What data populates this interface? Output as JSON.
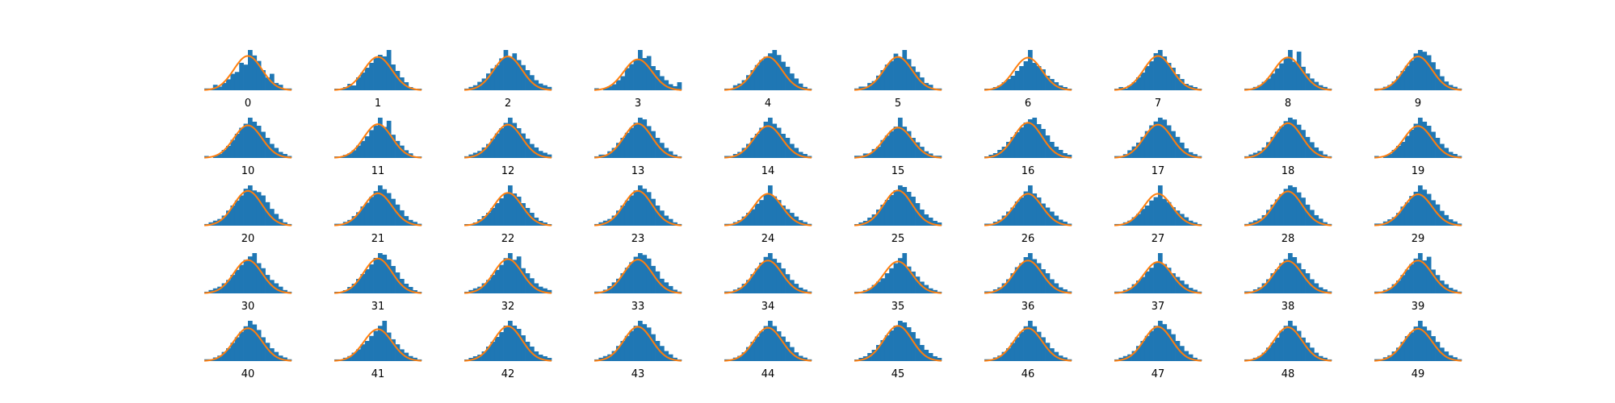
{
  "chart_data": {
    "type": "bar",
    "description_kind": "grid-of-histograms-with-normal-fit",
    "grid": {
      "rows": 5,
      "cols": 10
    },
    "colors": {
      "bars": "#1f77b4",
      "fit_curve": "#ff7f0e",
      "background": "#ffffff"
    },
    "axes_visible": false,
    "grid_lines": false,
    "panels": [
      {
        "label": "0",
        "counts": [
          1,
          1,
          3,
          2,
          4,
          6,
          9,
          10,
          15,
          14,
          22,
          19,
          16,
          11,
          7,
          9,
          4,
          3,
          1,
          1
        ],
        "peak": 0.62
      },
      {
        "label": "1",
        "counts": [
          1,
          1,
          2,
          4,
          3,
          8,
          11,
          14,
          17,
          20,
          22,
          21,
          25,
          16,
          12,
          8,
          5,
          2,
          1,
          1
        ],
        "peak": 0.58
      },
      {
        "label": "2",
        "counts": [
          1,
          2,
          3,
          5,
          7,
          10,
          13,
          15,
          19,
          24,
          20,
          22,
          18,
          15,
          12,
          9,
          6,
          4,
          3,
          2
        ],
        "peak": 0.6
      },
      {
        "label": "3",
        "counts": [
          1,
          0,
          1,
          2,
          3,
          5,
          7,
          11,
          13,
          15,
          20,
          16,
          17,
          12,
          10,
          7,
          5,
          3,
          2,
          4
        ],
        "peak": 0.48
      },
      {
        "label": "4",
        "counts": [
          1,
          1,
          3,
          4,
          6,
          9,
          12,
          15,
          18,
          20,
          22,
          24,
          21,
          17,
          14,
          10,
          7,
          4,
          2,
          1
        ],
        "peak": 0.58
      },
      {
        "label": "5",
        "counts": [
          1,
          2,
          2,
          4,
          5,
          8,
          11,
          14,
          16,
          20,
          18,
          22,
          17,
          13,
          10,
          7,
          4,
          3,
          1,
          1
        ],
        "peak": 0.58
      },
      {
        "label": "6",
        "counts": [
          1,
          1,
          2,
          3,
          5,
          7,
          9,
          12,
          15,
          18,
          25,
          17,
          15,
          13,
          9,
          7,
          5,
          3,
          2,
          1
        ],
        "peak": 0.55
      },
      {
        "label": "7",
        "counts": [
          1,
          2,
          1,
          3,
          5,
          8,
          11,
          15,
          18,
          23,
          25,
          21,
          17,
          14,
          10,
          7,
          4,
          3,
          2,
          1
        ],
        "peak": 0.62
      },
      {
        "label": "8",
        "counts": [
          1,
          1,
          2,
          3,
          5,
          7,
          10,
          13,
          16,
          19,
          24,
          17,
          23,
          14,
          10,
          7,
          5,
          3,
          2,
          1
        ],
        "peak": 0.56
      },
      {
        "label": "9",
        "counts": [
          1,
          1,
          2,
          3,
          5,
          8,
          11,
          14,
          17,
          21,
          23,
          22,
          20,
          16,
          12,
          8,
          5,
          3,
          2,
          1
        ],
        "peak": 0.6
      },
      {
        "label": "10",
        "counts": [
          1,
          0,
          1,
          2,
          4,
          6,
          9,
          12,
          15,
          17,
          20,
          18,
          16,
          13,
          10,
          7,
          5,
          3,
          2,
          1
        ],
        "peak": 0.55
      },
      {
        "label": "11",
        "counts": [
          1,
          1,
          2,
          3,
          5,
          8,
          11,
          14,
          18,
          21,
          26,
          20,
          24,
          15,
          11,
          8,
          5,
          3,
          1,
          1
        ],
        "peak": 0.6
      },
      {
        "label": "12",
        "counts": [
          1,
          2,
          3,
          4,
          6,
          8,
          11,
          14,
          17,
          20,
          23,
          20,
          17,
          14,
          11,
          8,
          6,
          4,
          3,
          2
        ],
        "peak": 0.58
      },
      {
        "label": "13",
        "counts": [
          1,
          2,
          2,
          4,
          6,
          9,
          12,
          15,
          18,
          21,
          24,
          23,
          19,
          16,
          12,
          9,
          6,
          4,
          2,
          1
        ],
        "peak": 0.62
      },
      {
        "label": "14",
        "counts": [
          1,
          1,
          2,
          3,
          5,
          7,
          10,
          12,
          15,
          18,
          20,
          17,
          15,
          12,
          10,
          7,
          5,
          3,
          2,
          1
        ],
        "peak": 0.52
      },
      {
        "label": "15",
        "counts": [
          1,
          1,
          2,
          2,
          4,
          5,
          8,
          10,
          12,
          14,
          18,
          14,
          12,
          9,
          7,
          5,
          3,
          2,
          1,
          1
        ],
        "peak": 0.46
      },
      {
        "label": "16",
        "counts": [
          1,
          2,
          3,
          5,
          7,
          10,
          13,
          16,
          19,
          22,
          24,
          25,
          21,
          18,
          14,
          10,
          7,
          5,
          3,
          2
        ],
        "peak": 0.66
      },
      {
        "label": "17",
        "counts": [
          1,
          1,
          2,
          4,
          6,
          8,
          11,
          14,
          17,
          19,
          21,
          20,
          17,
          14,
          11,
          8,
          5,
          3,
          2,
          1
        ],
        "peak": 0.58
      },
      {
        "label": "18",
        "counts": [
          1,
          2,
          3,
          4,
          6,
          9,
          12,
          15,
          18,
          21,
          23,
          22,
          19,
          16,
          12,
          9,
          6,
          4,
          2,
          1
        ],
        "peak": 0.64
      },
      {
        "label": "19",
        "counts": [
          1,
          0,
          1,
          2,
          4,
          6,
          8,
          11,
          14,
          17,
          20,
          18,
          16,
          13,
          10,
          7,
          5,
          3,
          2,
          1
        ],
        "peak": 0.52
      },
      {
        "label": "20",
        "counts": [
          1,
          2,
          3,
          4,
          6,
          9,
          12,
          15,
          18,
          22,
          24,
          21,
          20,
          18,
          14,
          10,
          7,
          4,
          2,
          1
        ],
        "peak": 0.64
      },
      {
        "label": "21",
        "counts": [
          1,
          1,
          2,
          3,
          5,
          7,
          10,
          12,
          15,
          18,
          21,
          19,
          17,
          14,
          11,
          8,
          5,
          3,
          2,
          1
        ],
        "peak": 0.54
      },
      {
        "label": "22",
        "counts": [
          1,
          1,
          2,
          4,
          6,
          8,
          11,
          14,
          17,
          20,
          25,
          20,
          18,
          14,
          11,
          8,
          5,
          3,
          2,
          1
        ],
        "peak": 0.56
      },
      {
        "label": "23",
        "counts": [
          1,
          2,
          3,
          4,
          6,
          9,
          12,
          15,
          18,
          21,
          24,
          22,
          20,
          16,
          12,
          9,
          6,
          4,
          2,
          1
        ],
        "peak": 0.64
      },
      {
        "label": "24",
        "counts": [
          1,
          1,
          2,
          3,
          5,
          7,
          9,
          12,
          14,
          17,
          22,
          16,
          14,
          11,
          9,
          7,
          5,
          3,
          2,
          1
        ],
        "peak": 0.52
      },
      {
        "label": "25",
        "counts": [
          1,
          2,
          3,
          5,
          7,
          10,
          13,
          16,
          19,
          22,
          25,
          24,
          21,
          18,
          14,
          10,
          7,
          5,
          3,
          2
        ],
        "peak": 0.66
      },
      {
        "label": "26",
        "counts": [
          1,
          1,
          2,
          3,
          5,
          7,
          9,
          12,
          14,
          17,
          20,
          16,
          14,
          11,
          9,
          7,
          5,
          3,
          2,
          1
        ],
        "peak": 0.52
      },
      {
        "label": "27",
        "counts": [
          1,
          1,
          2,
          3,
          5,
          7,
          10,
          12,
          15,
          17,
          24,
          16,
          14,
          11,
          9,
          7,
          5,
          3,
          2,
          1
        ],
        "peak": 0.52
      },
      {
        "label": "28",
        "counts": [
          1,
          2,
          3,
          4,
          6,
          9,
          12,
          15,
          18,
          21,
          23,
          22,
          19,
          16,
          12,
          9,
          6,
          4,
          2,
          1
        ],
        "peak": 0.62
      },
      {
        "label": "29",
        "counts": [
          1,
          1,
          2,
          3,
          4,
          6,
          9,
          11,
          14,
          16,
          19,
          17,
          15,
          12,
          10,
          7,
          5,
          3,
          2,
          1
        ],
        "peak": 0.5
      },
      {
        "label": "30",
        "counts": [
          1,
          2,
          3,
          4,
          6,
          8,
          11,
          14,
          17,
          20,
          22,
          24,
          18,
          15,
          11,
          8,
          6,
          4,
          2,
          1
        ],
        "peak": 0.58
      },
      {
        "label": "31",
        "counts": [
          1,
          1,
          2,
          4,
          6,
          9,
          12,
          15,
          18,
          22,
          25,
          24,
          21,
          17,
          13,
          9,
          6,
          4,
          2,
          1
        ],
        "peak": 0.64
      },
      {
        "label": "32",
        "counts": [
          1,
          2,
          3,
          4,
          6,
          8,
          11,
          14,
          17,
          21,
          24,
          20,
          22,
          15,
          12,
          9,
          6,
          4,
          3,
          2
        ],
        "peak": 0.62
      },
      {
        "label": "33",
        "counts": [
          1,
          1,
          2,
          4,
          6,
          8,
          11,
          14,
          17,
          20,
          22,
          21,
          19,
          15,
          12,
          8,
          6,
          4,
          2,
          1
        ],
        "peak": 0.6
      },
      {
        "label": "34",
        "counts": [
          1,
          1,
          2,
          3,
          5,
          7,
          10,
          13,
          16,
          19,
          21,
          18,
          16,
          13,
          10,
          7,
          5,
          3,
          2,
          1
        ],
        "peak": 0.56
      },
      {
        "label": "35",
        "counts": [
          1,
          1,
          2,
          3,
          5,
          7,
          9,
          12,
          15,
          18,
          21,
          24,
          16,
          13,
          10,
          7,
          5,
          3,
          2,
          1
        ],
        "peak": 0.52
      },
      {
        "label": "36",
        "counts": [
          1,
          1,
          2,
          3,
          5,
          7,
          10,
          13,
          15,
          18,
          20,
          17,
          15,
          12,
          10,
          7,
          5,
          3,
          2,
          1
        ],
        "peak": 0.56
      },
      {
        "label": "37",
        "counts": [
          1,
          1,
          2,
          3,
          5,
          7,
          9,
          12,
          14,
          17,
          22,
          16,
          14,
          11,
          9,
          7,
          5,
          3,
          2,
          1
        ],
        "peak": 0.5
      },
      {
        "label": "38",
        "counts": [
          1,
          1,
          2,
          3,
          5,
          7,
          10,
          12,
          15,
          17,
          20,
          18,
          15,
          12,
          10,
          7,
          5,
          3,
          2,
          1
        ],
        "peak": 0.54
      },
      {
        "label": "39",
        "counts": [
          1,
          1,
          2,
          3,
          5,
          7,
          10,
          13,
          16,
          19,
          22,
          18,
          20,
          13,
          10,
          7,
          5,
          3,
          2,
          1
        ],
        "peak": 0.56
      },
      {
        "label": "40",
        "counts": [
          1,
          1,
          2,
          3,
          5,
          7,
          10,
          13,
          16,
          19,
          22,
          20,
          17,
          13,
          10,
          7,
          5,
          3,
          2,
          1
        ],
        "peak": 0.56
      },
      {
        "label": "41",
        "counts": [
          1,
          1,
          2,
          3,
          5,
          7,
          10,
          12,
          15,
          18,
          21,
          24,
          17,
          13,
          10,
          7,
          5,
          3,
          2,
          1
        ],
        "peak": 0.52
      },
      {
        "label": "42",
        "counts": [
          1,
          2,
          3,
          4,
          6,
          9,
          12,
          15,
          18,
          22,
          25,
          22,
          20,
          16,
          12,
          9,
          6,
          4,
          3,
          2
        ],
        "peak": 0.64
      },
      {
        "label": "43",
        "counts": [
          1,
          2,
          3,
          4,
          6,
          9,
          12,
          15,
          18,
          21,
          24,
          22,
          20,
          16,
          12,
          9,
          6,
          4,
          2,
          1
        ],
        "peak": 0.62
      },
      {
        "label": "44",
        "counts": [
          1,
          1,
          2,
          3,
          5,
          8,
          11,
          14,
          17,
          20,
          23,
          20,
          17,
          14,
          11,
          8,
          5,
          3,
          2,
          1
        ],
        "peak": 0.58
      },
      {
        "label": "45",
        "counts": [
          1,
          2,
          3,
          5,
          7,
          10,
          13,
          16,
          19,
          22,
          25,
          24,
          21,
          18,
          14,
          10,
          7,
          5,
          3,
          2
        ],
        "peak": 0.66
      },
      {
        "label": "46",
        "counts": [
          1,
          1,
          2,
          3,
          5,
          7,
          10,
          13,
          16,
          19,
          22,
          19,
          16,
          13,
          10,
          7,
          5,
          3,
          2,
          1
        ],
        "peak": 0.56
      },
      {
        "label": "47",
        "counts": [
          1,
          2,
          3,
          4,
          6,
          9,
          12,
          15,
          18,
          21,
          24,
          22,
          19,
          16,
          12,
          9,
          6,
          4,
          2,
          1
        ],
        "peak": 0.62
      },
      {
        "label": "48",
        "counts": [
          1,
          1,
          2,
          3,
          5,
          8,
          11,
          14,
          18,
          21,
          24,
          21,
          18,
          14,
          11,
          8,
          5,
          3,
          2,
          1
        ],
        "peak": 0.6
      },
      {
        "label": "49",
        "counts": [
          1,
          1,
          2,
          3,
          5,
          7,
          10,
          13,
          15,
          18,
          21,
          18,
          16,
          13,
          10,
          7,
          5,
          3,
          2,
          1
        ],
        "peak": 0.54
      }
    ]
  }
}
